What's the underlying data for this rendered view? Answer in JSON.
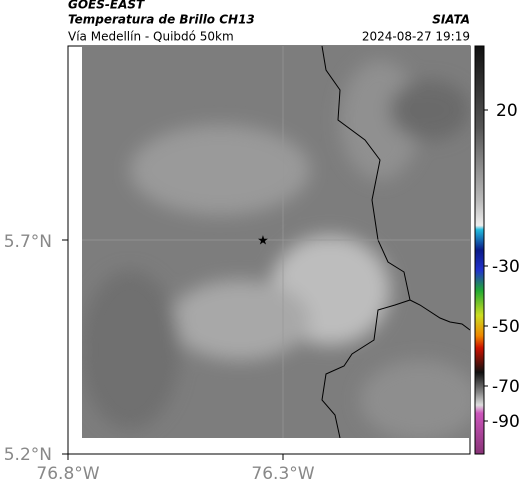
{
  "header": {
    "satellite": "GOES-EAST",
    "product": "Temperatura de Brillo CH13",
    "source": "SIATA",
    "route": "Vía Medellín - Quibdó 50km",
    "timestamp": "2024-08-27 19:19"
  },
  "axes": {
    "lat_labels": [
      "5.7°N",
      "5.2°N"
    ],
    "lon_labels": [
      "76.8°W",
      "76.3°W"
    ]
  },
  "colorbar": {
    "labels": [
      "20",
      "-30",
      "-50",
      "-70",
      "-90"
    ]
  }
}
